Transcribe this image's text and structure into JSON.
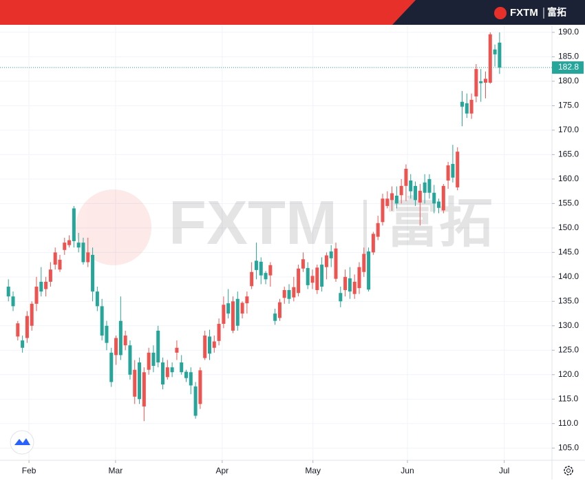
{
  "header": {
    "brand": "FXTM",
    "brand_cn": "富拓"
  },
  "chart_data": {
    "type": "candlestick",
    "up_color": "#ef5350",
    "down_color": "#26a69a",
    "grid": true,
    "open": [
      138,
      136,
      127.8,
      127,
      127.5,
      130,
      134.5,
      139,
      137.5,
      139,
      142.5,
      141.5,
      145.5,
      146.5,
      154,
      147,
      147,
      143,
      144.5,
      137,
      134,
      130,
      124.5,
      124,
      131,
      126,
      126,
      115.5,
      122.5,
      113.5,
      121,
      124.5,
      129,
      122.5,
      119.5,
      121.5,
      124.5,
      122.5,
      120.6,
      120.5,
      117.6,
      114,
      123.4,
      127.8,
      125.5,
      126.9,
      130.4,
      134.6,
      129,
      135.5,
      132.5,
      134.6,
      138.1,
      143.3,
      143.1,
      140.8,
      140.3,
      132.5,
      131.6,
      135.7,
      137.3,
      135.8,
      136.7,
      141.7,
      141.8,
      138.8,
      137.3,
      142.5,
      142,
      145.2,
      139.6,
      136.7,
      137.3,
      139.7,
      136.5,
      137.7,
      141,
      145.2,
      145,
      148.2,
      151.2,
      154.5,
      155.7,
      156.6,
      156.7,
      158.6,
      159.7,
      158.6,
      155.2,
      159.3,
      160,
      157.2,
      155.4,
      153.6,
      159.7,
      163.1,
      158.3,
      175.8,
      175.5,
      173.4,
      176.9,
      180,
      179.7,
      179.7,
      186.5,
      187.9
    ],
    "high": [
      139.5,
      137,
      131,
      128,
      133,
      135,
      140,
      142,
      140,
      143,
      146,
      144.5,
      148,
      148.5,
      154.5,
      149,
      148,
      148,
      146,
      138,
      135.5,
      131,
      125.5,
      128,
      136,
      129,
      127,
      123,
      123.5,
      121.5,
      125.5,
      126,
      130,
      123.5,
      123,
      122.5,
      127,
      124,
      121,
      121.5,
      118.5,
      121.5,
      129,
      129.2,
      128,
      131.5,
      136,
      137.5,
      136,
      137,
      135,
      137,
      143,
      147,
      144,
      141.2,
      143,
      133.5,
      135.5,
      138,
      138.5,
      140,
      142.5,
      145,
      143,
      141.5,
      142.5,
      144,
      145,
      146.5,
      147,
      138,
      141.5,
      142,
      140.5,
      143,
      146,
      146,
      149.2,
      152.5,
      157,
      157.5,
      158.5,
      158.5,
      160,
      163,
      161,
      159.5,
      159,
      161,
      161,
      158.8,
      156,
      159,
      163.5,
      167,
      166.5,
      178,
      177.5,
      177.5,
      183.5,
      182.5,
      182,
      190,
      187.5,
      190
    ],
    "low": [
      135,
      133,
      127,
      124.5,
      126.5,
      129,
      133,
      136,
      136,
      138,
      141.5,
      141,
      144.5,
      146,
      146,
      145,
      142.5,
      142,
      135,
      133,
      127,
      125,
      117.5,
      122,
      123,
      125,
      119,
      114,
      114,
      110.5,
      120,
      120.5,
      121.5,
      117,
      119,
      119.5,
      123,
      120,
      118.5,
      116,
      111,
      113,
      123,
      123,
      124.5,
      126,
      129.5,
      131.5,
      128.5,
      129,
      131.5,
      132.5,
      137.5,
      139.5,
      138.5,
      138.5,
      138,
      130.2,
      131,
      134.5,
      134.5,
      135,
      136,
      141,
      137.5,
      137.5,
      136.5,
      137,
      139.5,
      142,
      139,
      133.8,
      136,
      135.5,
      135.5,
      136.5,
      140,
      137,
      144.5,
      147.5,
      150.5,
      154,
      153.5,
      154,
      155,
      155.5,
      156,
      154.5,
      150.5,
      155,
      156,
      153,
      153,
      153,
      158,
      159.3,
      157.7,
      170.8,
      172.5,
      172.3,
      175.7,
      175.8,
      176.5,
      179.5,
      183,
      181.5
    ],
    "close": [
      136,
      134,
      130.5,
      125.5,
      132,
      134.5,
      138,
      137,
      139,
      141.5,
      145,
      143.5,
      147,
      147.5,
      147.3,
      146,
      143,
      145,
      137,
      134,
      128,
      126.5,
      118.5,
      127.5,
      124,
      128,
      120,
      121,
      115,
      120.5,
      124.5,
      121.8,
      122.5,
      118,
      121.5,
      120.5,
      125.5,
      120.5,
      119.3,
      117.8,
      111.6,
      120.9,
      128,
      124.3,
      126.8,
      130.4,
      134.3,
      132.5,
      135,
      130,
      134.7,
      136,
      141,
      141.4,
      140.3,
      139.5,
      142.4,
      131,
      134.8,
      137.3,
      135.5,
      137.9,
      141.7,
      143.6,
      138.3,
      140.2,
      141.9,
      138,
      144.4,
      143.8,
      145.8,
      135,
      140,
      137,
      139,
      142,
      144.7,
      137.4,
      148.8,
      151,
      156,
      156,
      157.1,
      155,
      158.6,
      162.1,
      157.5,
      155.7,
      157.6,
      157.2,
      157.2,
      155,
      154.1,
      158.6,
      162.8,
      160.3,
      165.6,
      174.8,
      173.4,
      176.2,
      182.5,
      179.6,
      180.5,
      189.6,
      185.5,
      182.8
    ],
    "xlim": [
      -1.8,
      116.2
    ],
    "xticks": [
      {
        "value": 4.4,
        "label": "Feb"
      },
      {
        "value": 22.9,
        "label": "Mar"
      },
      {
        "value": 45.7,
        "label": "Apr"
      },
      {
        "value": 65.1,
        "label": "May"
      },
      {
        "value": 85.3,
        "label": "Jun"
      },
      {
        "value": 106,
        "label": "Jul"
      }
    ],
    "ylim": [
      102.5,
      191.4
    ],
    "yticks": [
      {
        "value": 105,
        "label": "105.0"
      },
      {
        "value": 110,
        "label": "110.0"
      },
      {
        "value": 115,
        "label": "115.0"
      },
      {
        "value": 120,
        "label": "120.0"
      },
      {
        "value": 125,
        "label": "125.0"
      },
      {
        "value": 130,
        "label": "130.0"
      },
      {
        "value": 135,
        "label": "135.0"
      },
      {
        "value": 140,
        "label": "140.0"
      },
      {
        "value": 145,
        "label": "145.0"
      },
      {
        "value": 150,
        "label": "150.0"
      },
      {
        "value": 155,
        "label": "155.0"
      },
      {
        "value": 160,
        "label": "160.0"
      },
      {
        "value": 165,
        "label": "165.0"
      },
      {
        "value": 170,
        "label": "170.0"
      },
      {
        "value": 175,
        "label": "175.0"
      },
      {
        "value": 180,
        "label": "180.0"
      },
      {
        "value": 185,
        "label": "185.0"
      },
      {
        "value": 190,
        "label": "190.0"
      }
    ],
    "last_price": 182.8
  }
}
